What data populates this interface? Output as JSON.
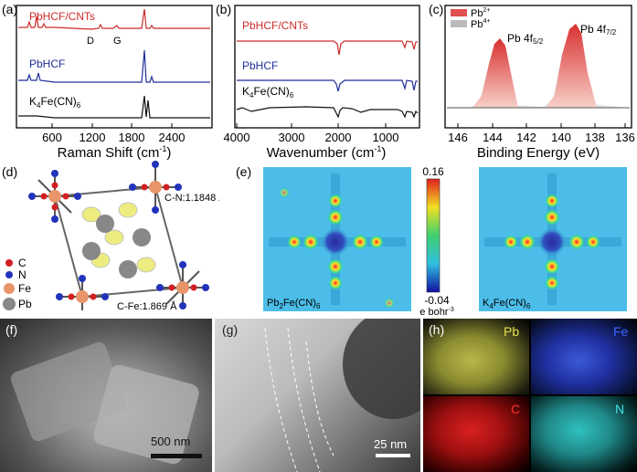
{
  "panels": {
    "a": {
      "label": "(a)",
      "xlabel": "Raman Shift (cm",
      "xlabel_sup": "-1",
      "xlabel_end": ")",
      "xticks": [
        "600",
        "1200",
        "1800",
        "2400"
      ],
      "series": [
        "PbHCF/CNTs",
        "PbHCF",
        "K"
      ],
      "series_k_sub1": "4",
      "series_k_mid": "Fe(CN)",
      "series_k_sub2": "6",
      "peak_d": "D",
      "peak_g": "G"
    },
    "b": {
      "label": "(b)",
      "xlabel": "Wavenumber (cm",
      "xlabel_sup": "-1",
      "xlabel_end": ")",
      "xticks": [
        "4000",
        "3000",
        "2000",
        "1000"
      ],
      "series": [
        "PbHCF/CNTs",
        "PbHCF",
        "K"
      ],
      "series_k_sub1": "4",
      "series_k_mid": "Fe(CN)",
      "series_k_sub2": "6"
    },
    "c": {
      "label": "(c)",
      "xlabel": "Binding Energy (eV)",
      "xticks": [
        "146",
        "144",
        "142",
        "140",
        "138",
        "136"
      ],
      "legend": [
        {
          "name": "Pb",
          "sup": "2+",
          "color": "#e05050"
        },
        {
          "name": "Pb",
          "sup": "4+",
          "color": "#bbbbbb"
        }
      ],
      "peak1": "Pb 4f",
      "peak1_sub": "5/2",
      "peak2": "Pb 4f",
      "peak2_sub": "7/2"
    },
    "d": {
      "label": "(d)",
      "bond1": "C-N:1.1848 Å",
      "bond2": "C-Fe:1.869 Å",
      "legend": [
        {
          "name": "C",
          "color": "#d22020"
        },
        {
          "name": "N",
          "color": "#2233bb"
        },
        {
          "name": "Fe",
          "color": "#e8956a"
        },
        {
          "name": "Pb",
          "color": "#888888"
        }
      ]
    },
    "e": {
      "label": "(e)",
      "scale_max": "0.16",
      "scale_min": "-0.04",
      "unit": "e bohr",
      "unit_sup": "-3",
      "map1_label": "Pb",
      "map1_sub1": "2",
      "map1_mid": "Fe(CN)",
      "map1_sub2": "6",
      "map2_label": "K",
      "map2_sub1": "4",
      "map2_mid": "Fe(CN)",
      "map2_sub2": "6"
    },
    "f": {
      "label": "(f)",
      "scale": "500 nm"
    },
    "g": {
      "label": "(g)",
      "scale": "25 nm"
    },
    "h": {
      "label": "(h)",
      "maps": [
        "Pb",
        "Fe",
        "C",
        "N"
      ]
    }
  },
  "colors": {
    "red": "#cc2b2b",
    "blue": "#1f2e99",
    "black": "#111111"
  }
}
